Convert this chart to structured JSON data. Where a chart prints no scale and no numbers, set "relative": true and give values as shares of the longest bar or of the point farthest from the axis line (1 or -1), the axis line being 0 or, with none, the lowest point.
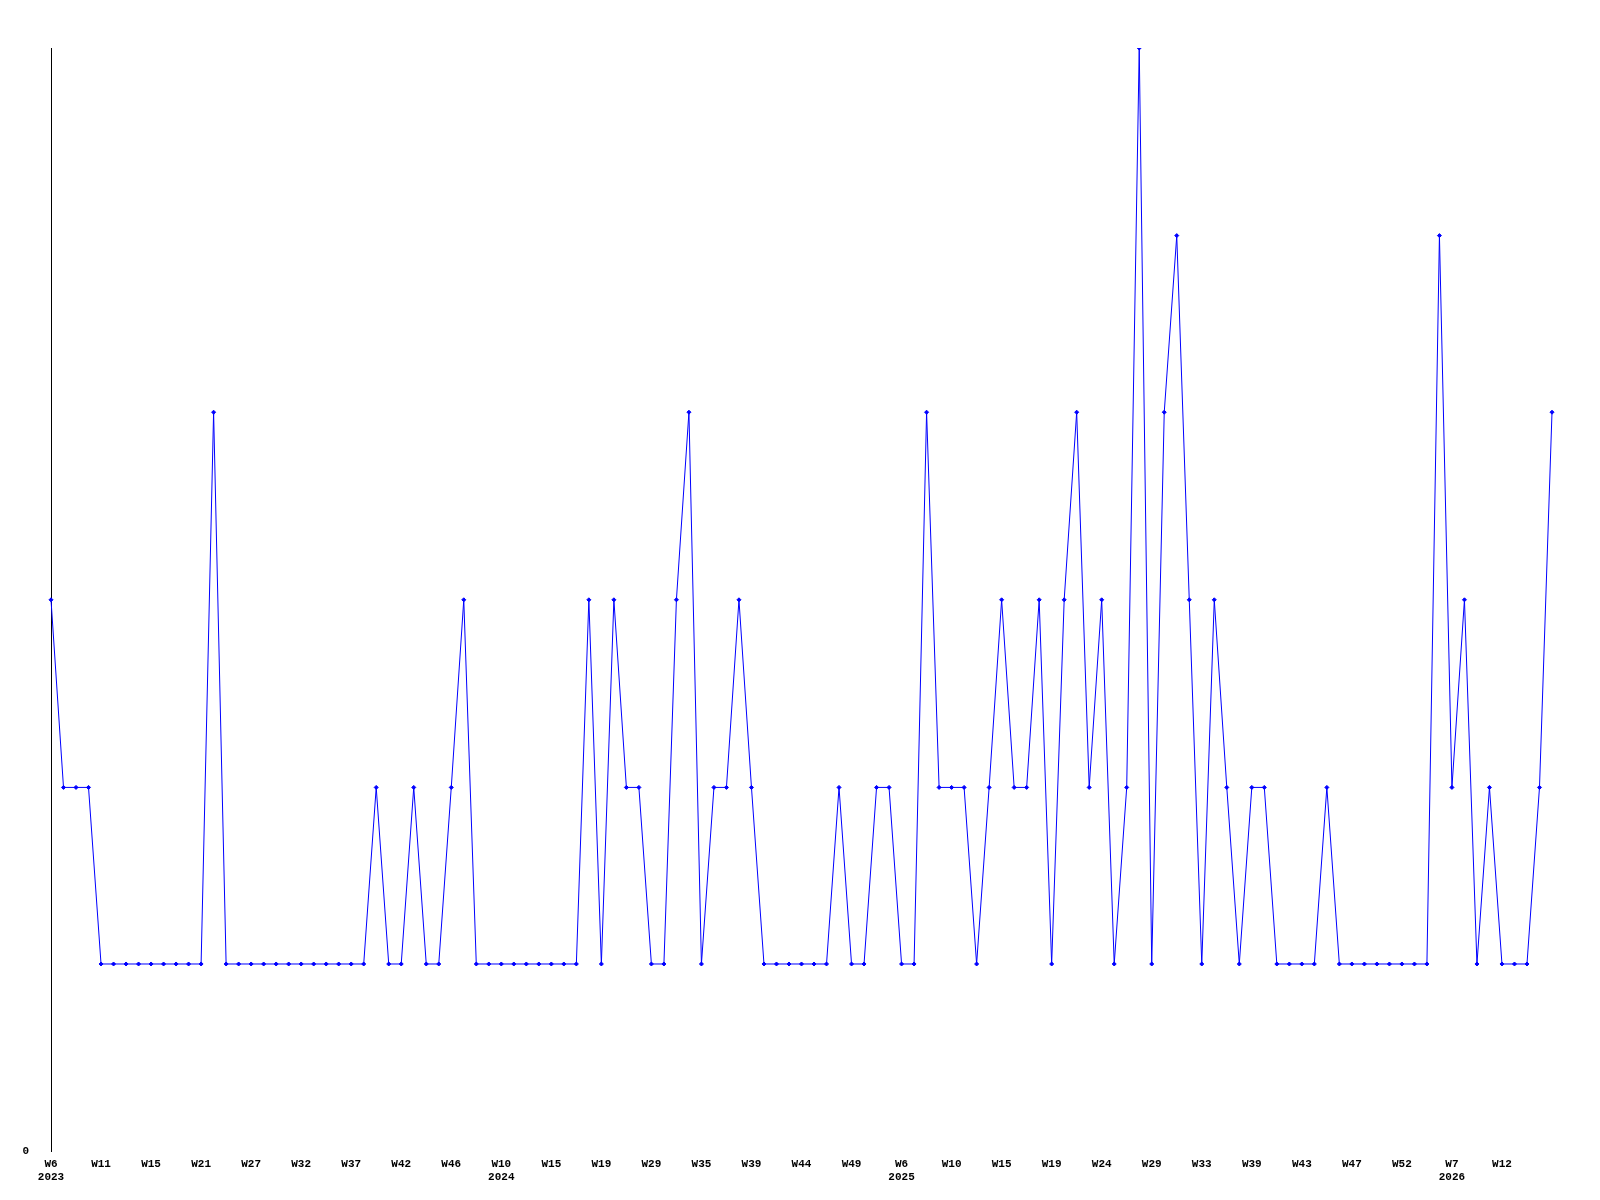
{
  "chart_data": {
    "type": "line",
    "relative": true,
    "annotations": [
      "0"
    ],
    "color": "#0000ff",
    "marker": "diamond",
    "line_style": "solid",
    "grid": false,
    "legend": false,
    "categories": [
      "W6\n2023",
      null,
      null,
      null,
      "W11",
      null,
      null,
      null,
      "W15",
      null,
      null,
      null,
      "W21",
      null,
      null,
      null,
      "W27",
      null,
      null,
      null,
      "W32",
      null,
      null,
      null,
      "W37",
      null,
      null,
      null,
      "W42",
      null,
      null,
      null,
      "W46",
      null,
      null,
      null,
      "W10\n2024",
      null,
      null,
      null,
      "W15",
      null,
      null,
      null,
      "W19",
      null,
      null,
      null,
      "W29",
      null,
      null,
      null,
      "W35",
      null,
      null,
      null,
      "W39",
      null,
      null,
      null,
      "W44",
      null,
      null,
      null,
      "W49",
      null,
      null,
      null,
      "W6\n2025",
      null,
      null,
      null,
      "W10",
      null,
      null,
      null,
      "W15",
      null,
      null,
      null,
      "W19",
      null,
      null,
      null,
      "W24",
      null,
      null,
      null,
      "W29",
      null,
      null,
      null,
      "W33",
      null,
      null,
      null,
      "W39",
      null,
      null,
      null,
      "W43",
      null,
      null,
      null,
      "W47",
      null,
      null,
      null,
      "W52",
      null,
      null,
      null,
      "W7\n2026",
      null,
      null,
      null,
      "W12",
      null,
      null,
      null,
      null
    ],
    "values": [
      0.5,
      0.33,
      0.33,
      0.33,
      0.17,
      0.17,
      0.17,
      0.17,
      0.17,
      0.17,
      0.17,
      0.17,
      0.17,
      0.67,
      0.17,
      0.17,
      0.17,
      0.17,
      0.17,
      0.17,
      0.17,
      0.17,
      0.17,
      0.17,
      0.17,
      0.17,
      0.33,
      0.17,
      0.17,
      0.33,
      0.17,
      0.17,
      0.33,
      0.5,
      0.17,
      0.17,
      0.17,
      0.17,
      0.17,
      0.17,
      0.17,
      0.17,
      0.17,
      0.5,
      0.17,
      0.5,
      0.33,
      0.33,
      0.17,
      0.17,
      0.5,
      0.67,
      0.17,
      0.33,
      0.33,
      0.5,
      0.33,
      0.17,
      0.17,
      0.17,
      0.17,
      0.17,
      0.17,
      0.33,
      0.17,
      0.17,
      0.33,
      0.33,
      0.17,
      0.17,
      0.67,
      0.33,
      0.33,
      0.33,
      0.17,
      0.33,
      0.5,
      0.33,
      0.33,
      0.5,
      0.17,
      0.5,
      0.67,
      0.33,
      0.5,
      0.17,
      0.33,
      1,
      0.17,
      0.67,
      0.83,
      0.5,
      0.17,
      0.5,
      0.33,
      0.17,
      0.33,
      0.33,
      0.17,
      0.17,
      0.17,
      0.17,
      0.33,
      0.17,
      0.17,
      0.17,
      0.17,
      0.17,
      0.17,
      0.17,
      0.17,
      0.83,
      0.33,
      0.5,
      0.17,
      0.33,
      0.17,
      0.17,
      0.17,
      0.33,
      0.67
    ]
  }
}
